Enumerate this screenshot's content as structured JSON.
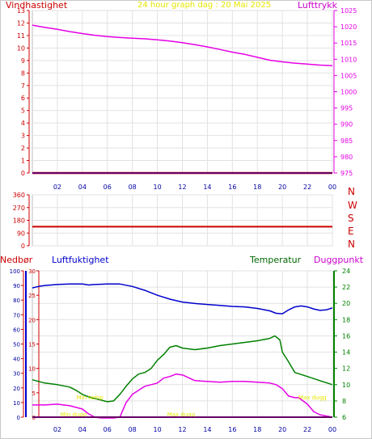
{
  "header": {
    "left_label": "Vindhastighet",
    "title": "24 hour graph dag : 20 Mai 2025",
    "right_label": "Lufttrykk"
  },
  "colors": {
    "wind": "#cc0000",
    "pressure": "#e600e6",
    "direction": "#cc0000",
    "humidity": "#0000cc",
    "temperature": "#008000",
    "dewpoint": "#e600e6",
    "rain": "#cc0000",
    "title": "#e6e600",
    "grid": "#e2e2e2"
  },
  "bottom_labels": {
    "rain": "Nedbør",
    "humidity": "Luftfuktighet",
    "temperature": "Temperatur",
    "dewpoint": "Duggpunkt"
  },
  "chart_data": [
    {
      "type": "line",
      "name": "wind_pressure",
      "x_ticks": [
        "02",
        "04",
        "06",
        "08",
        "10",
        "12",
        "14",
        "16",
        "18",
        "20",
        "22",
        "00"
      ],
      "yleft": {
        "label": "Vindhastighet",
        "lim": [
          0,
          13
        ],
        "ticks": [
          "0",
          "1",
          "2",
          "3",
          "4",
          "5",
          "6",
          "7",
          "8",
          "9",
          "10",
          "11",
          "12",
          "13"
        ]
      },
      "yright": {
        "label": "Lufttrykk",
        "lim": [
          975,
          1025
        ],
        "ticks": [
          "975",
          "980",
          "985",
          "990",
          "995",
          "1000",
          "1005",
          "1010",
          "1015",
          "1020",
          "1025"
        ]
      },
      "series": [
        {
          "name": "Vindhastighet",
          "axis": "left",
          "x": [
            0,
            24
          ],
          "values": [
            0,
            0
          ]
        },
        {
          "name": "Lufttrykk",
          "axis": "right",
          "x": [
            0,
            1,
            2,
            3,
            4,
            5,
            6,
            7,
            8,
            9,
            10,
            11,
            12,
            13,
            14,
            15,
            16,
            17,
            18,
            19,
            20,
            21,
            22,
            23,
            24
          ],
          "values": [
            1020.5,
            1019.8,
            1019.2,
            1018.5,
            1017.9,
            1017.4,
            1017.0,
            1016.7,
            1016.5,
            1016.3,
            1016.0,
            1015.6,
            1015.1,
            1014.5,
            1013.8,
            1013.0,
            1012.2,
            1011.5,
            1010.6,
            1009.7,
            1009.2,
            1008.8,
            1008.5,
            1008.2,
            1008.0
          ]
        }
      ]
    },
    {
      "type": "line",
      "name": "wind_direction",
      "x_ticks": [],
      "yleft": {
        "lim": [
          0,
          360
        ],
        "ticks": [
          "0",
          "90",
          "180",
          "270",
          "360"
        ]
      },
      "yright_compass": [
        "N",
        "W",
        "S",
        "E",
        "N"
      ],
      "series": [
        {
          "name": "Vindretning",
          "x": [
            0,
            24
          ],
          "values": [
            135,
            135
          ]
        }
      ]
    },
    {
      "type": "line",
      "name": "humidity_temperature",
      "x_ticks": [
        "02",
        "04",
        "06",
        "08",
        "10",
        "12",
        "14",
        "16",
        "18",
        "20",
        "22",
        "00"
      ],
      "yrain": {
        "label": "Nedbør",
        "lim": [
          0,
          100
        ],
        "ticks": [
          "0",
          "10",
          "20",
          "30",
          "40",
          "50",
          "60",
          "70",
          "80",
          "90",
          "100"
        ]
      },
      "yhum": {
        "label": "Luftfuktighet",
        "lim": [
          0,
          30
        ],
        "ticks": [
          "0",
          "5",
          "10",
          "15",
          "20",
          "25",
          "30"
        ]
      },
      "ytemp": {
        "label": "Temperatur",
        "lim": [
          6,
          24
        ],
        "ticks": [
          "6",
          "8",
          "10",
          "12",
          "14",
          "16",
          "18",
          "20",
          "22",
          "24"
        ]
      },
      "annotations": [
        {
          "text": "Min temp",
          "x": 4.6,
          "y": 8.2
        },
        {
          "text": "Min dugg",
          "x": 3.3,
          "y": 6.1
        },
        {
          "text": "Max dugg",
          "x": 11.9,
          "y": 6.1
        },
        {
          "text": "Max dugg",
          "x": 22.4,
          "y": 8.2
        }
      ],
      "series": [
        {
          "name": "Luftfuktighet",
          "axis": "hum",
          "x": [
            0,
            0.5,
            1,
            2,
            3,
            4,
            4.5,
            5,
            6,
            7,
            8,
            9,
            10,
            11,
            12,
            13,
            14,
            15,
            16,
            17,
            18,
            19,
            19.5,
            20,
            20.5,
            21,
            21.5,
            22,
            22.5,
            23,
            23.5,
            24
          ],
          "values": [
            26.5,
            26.8,
            27.0,
            27.2,
            27.3,
            27.3,
            27.1,
            27.2,
            27.3,
            27.3,
            26.8,
            26.0,
            25.0,
            24.2,
            23.6,
            23.3,
            23.1,
            22.9,
            22.7,
            22.6,
            22.3,
            21.8,
            21.3,
            21.2,
            22.0,
            22.6,
            22.8,
            22.6,
            22.2,
            21.9,
            22.0,
            22.4
          ]
        },
        {
          "name": "Temperatur",
          "axis": "temp",
          "x": [
            0,
            0.5,
            1,
            2,
            3,
            3.5,
            4,
            4.5,
            5,
            5.5,
            6,
            6.5,
            7,
            7.5,
            8,
            8.5,
            9,
            9.5,
            10,
            10.5,
            11,
            11.5,
            12,
            13,
            14,
            15,
            16,
            17,
            18,
            19,
            19.4,
            19.8,
            20,
            20.5,
            21,
            22,
            23,
            24
          ],
          "values": [
            10.6,
            10.4,
            10.2,
            10.0,
            9.7,
            9.3,
            8.8,
            8.5,
            8.3,
            8.1,
            7.9,
            8.0,
            8.8,
            9.8,
            10.7,
            11.3,
            11.5,
            12.0,
            13.0,
            13.7,
            14.6,
            14.8,
            14.5,
            14.3,
            14.5,
            14.8,
            15.0,
            15.2,
            15.4,
            15.7,
            16.0,
            15.5,
            14.0,
            12.8,
            11.5,
            11.0,
            10.5,
            10.0
          ]
        },
        {
          "name": "Duggpunkt",
          "axis": "temp",
          "x": [
            0,
            1,
            2,
            3,
            4,
            4.5,
            5,
            5.5,
            6,
            6.5,
            7,
            7.5,
            8,
            8.5,
            9,
            9.5,
            10,
            10.5,
            11,
            11.5,
            12,
            13,
            14,
            15,
            16,
            17,
            18,
            19,
            19.5,
            20,
            20.5,
            21,
            21.3,
            22,
            22.5,
            23,
            24
          ],
          "values": [
            7.5,
            7.5,
            7.6,
            7.4,
            7.0,
            6.4,
            6.0,
            5.7,
            5.6,
            5.5,
            6.0,
            7.8,
            8.8,
            9.3,
            9.8,
            10.0,
            10.2,
            10.8,
            11.0,
            11.3,
            11.2,
            10.5,
            10.4,
            10.3,
            10.4,
            10.4,
            10.3,
            10.2,
            10.0,
            9.5,
            8.6,
            8.4,
            8.4,
            7.6,
            6.7,
            6.3,
            6.0
          ]
        },
        {
          "name": "Nedbør",
          "axis": "rain",
          "x": [
            0,
            24
          ],
          "values": [
            0,
            0
          ]
        }
      ]
    }
  ]
}
